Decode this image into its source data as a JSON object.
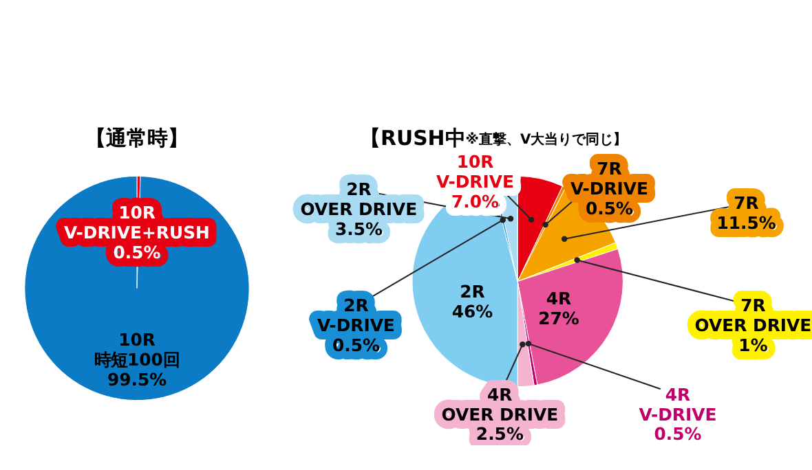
{
  "chart_data": [
    {
      "type": "pie",
      "title": "【通常時】",
      "categories": [
        "10R\nV-DRIVE+RUSH",
        "10R\n時短100回"
      ],
      "values": [
        0.5,
        99.5
      ],
      "value_labels": [
        "0.5%",
        "99.5%"
      ],
      "colors": [
        "#e60012",
        "#0a7bc4"
      ],
      "legend": false
    },
    {
      "type": "pie",
      "title": "【RUSH中",
      "subtitle": "※直撃、V大当りで同じ】",
      "categories": [
        "10R\nV-DRIVE",
        "7R\nV-DRIVE",
        "7R",
        "7R\nOVER DRIVE",
        "4R",
        "4R\nV-DRIVE",
        "4R\nOVER DRIVE",
        "2R",
        "2R\nV-DRIVE",
        "2R\nOVER DRIVE"
      ],
      "values": [
        7.0,
        0.5,
        11.5,
        1,
        27,
        0.5,
        2.5,
        46,
        0.5,
        3.5
      ],
      "value_labels": [
        "7.0%",
        "0.5%",
        "11.5%",
        "1%",
        "27%",
        "0.5%",
        "2.5%",
        "46%",
        "0.5%",
        "3.5%"
      ],
      "colors": [
        "#e60012",
        "#f08300",
        "#f6a300",
        "#fff100",
        "#e85298",
        "#c0006a",
        "#f4b4d0",
        "#7fcdf0",
        "#1a8fd6",
        "#a9dcf3"
      ],
      "legend": false
    }
  ]
}
